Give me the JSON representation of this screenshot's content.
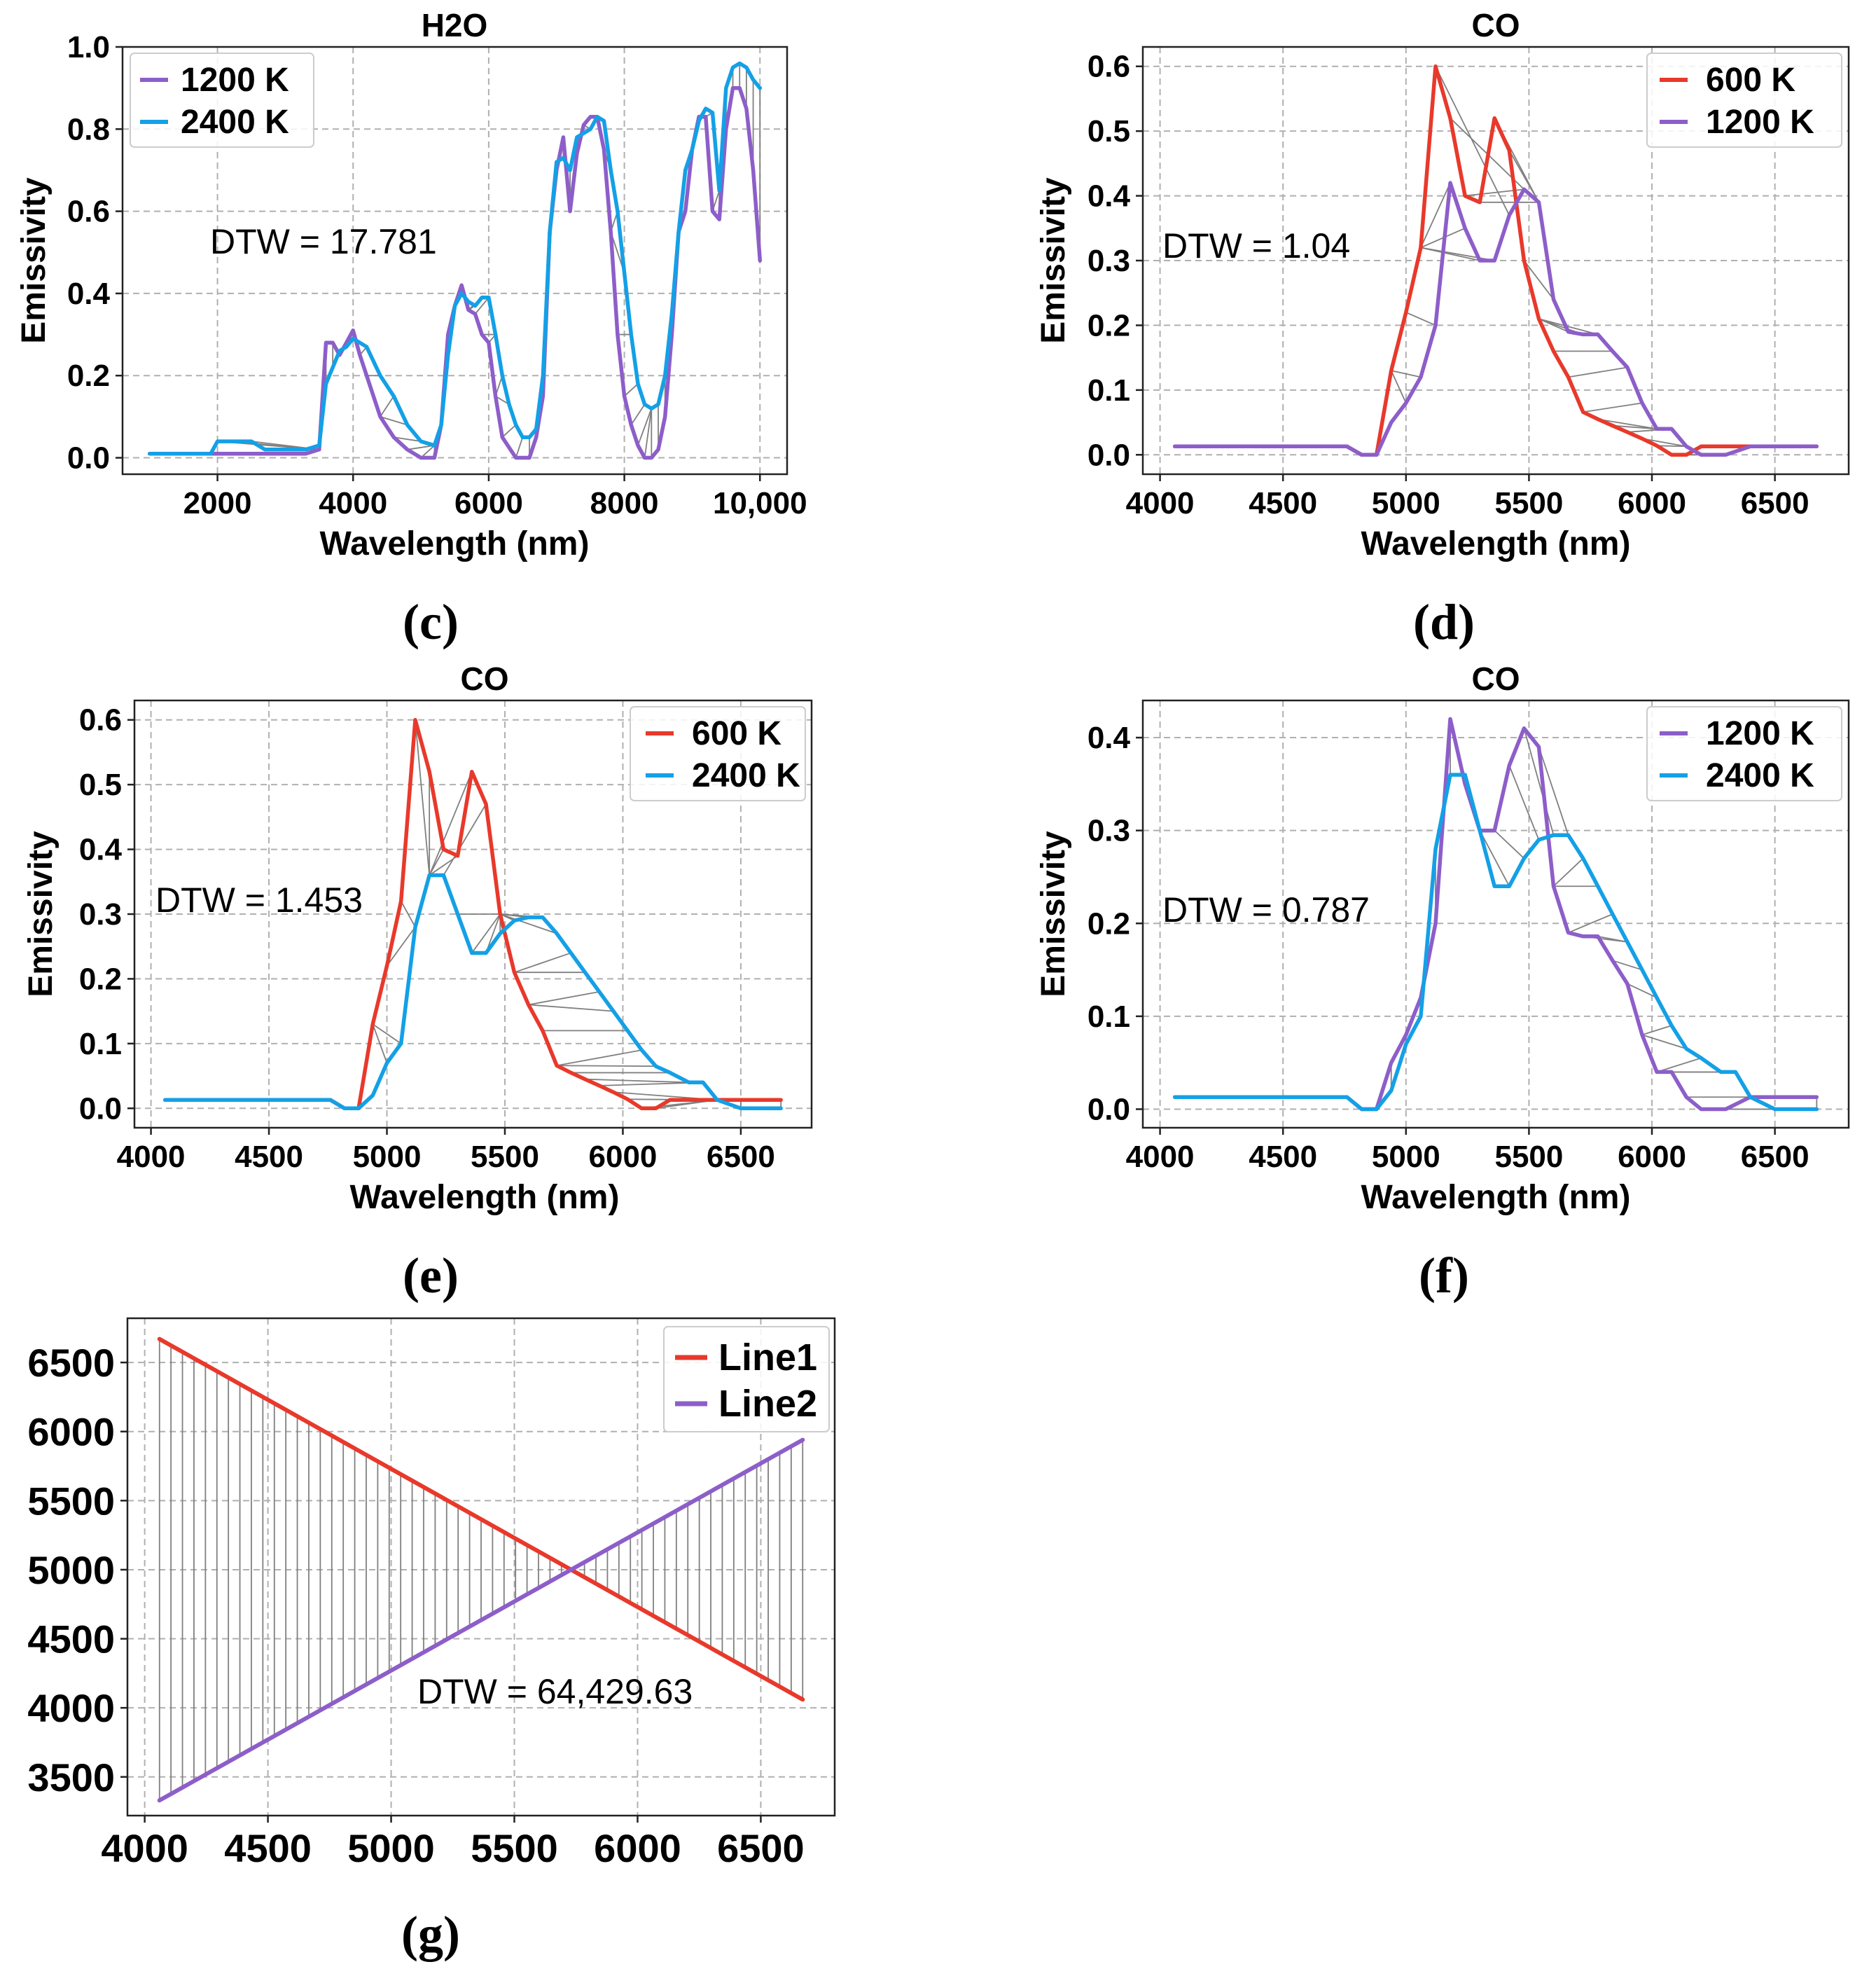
{
  "colors": {
    "red": "#e8392b",
    "purple": "#8d5ec9",
    "blue": "#14a0e6",
    "connector": "#808080"
  },
  "chart_data": [
    {
      "id": "c",
      "type": "line",
      "caption": "(c)",
      "title": "H2O",
      "xlabel": "Wavelength (nm)",
      "ylabel": "Emissivity",
      "xlim": [
        600,
        10400
      ],
      "ylim": [
        -0.04,
        1.0
      ],
      "xticks": [
        2000,
        4000,
        6000,
        8000,
        10000
      ],
      "xtick_labels": [
        "2000",
        "4000",
        "6000",
        "8000",
        "10,000"
      ],
      "yticks": [
        0.0,
        0.2,
        0.4,
        0.6,
        0.8,
        1.0
      ],
      "ytick_labels": [
        "0.0",
        "0.2",
        "0.4",
        "0.6",
        "0.8",
        "1.0"
      ],
      "dtw_label": "DTW = 17.781",
      "legend_loc": "upper left",
      "series": [
        {
          "name": "1200 K",
          "color": "purple",
          "x": [
            1000,
            2000,
            2500,
            2900,
            3300,
            3500,
            3600,
            3700,
            3800,
            3900,
            4000,
            4100,
            4200,
            4400,
            4600,
            4800,
            5000,
            5200,
            5300,
            5400,
            5500,
            5600,
            5700,
            5800,
            5900,
            6000,
            6100,
            6200,
            6400,
            6600,
            6700,
            6800,
            6900,
            7000,
            7100,
            7200,
            7300,
            7400,
            7500,
            7600,
            7700,
            7800,
            7900,
            8000,
            8100,
            8200,
            8300,
            8400,
            8500,
            8600,
            8700,
            8800,
            8900,
            9000,
            9100,
            9200,
            9300,
            9400,
            9500,
            9600,
            9700,
            9800,
            9900,
            10000
          ],
          "y": [
            0.01,
            0.01,
            0.01,
            0.01,
            0.01,
            0.02,
            0.28,
            0.28,
            0.25,
            0.28,
            0.31,
            0.25,
            0.2,
            0.1,
            0.05,
            0.02,
            0.0,
            0.0,
            0.08,
            0.3,
            0.37,
            0.42,
            0.36,
            0.35,
            0.3,
            0.28,
            0.15,
            0.05,
            0.0,
            0.0,
            0.05,
            0.15,
            0.55,
            0.7,
            0.78,
            0.6,
            0.74,
            0.81,
            0.83,
            0.83,
            0.75,
            0.55,
            0.3,
            0.15,
            0.08,
            0.03,
            0.0,
            0.0,
            0.02,
            0.1,
            0.3,
            0.55,
            0.6,
            0.75,
            0.83,
            0.83,
            0.6,
            0.58,
            0.8,
            0.9,
            0.9,
            0.85,
            0.7,
            0.48
          ]
        },
        {
          "name": "2400 K",
          "color": "blue",
          "x": [
            1000,
            1900,
            2000,
            2200,
            2500,
            2700,
            3000,
            3300,
            3500,
            3600,
            3700,
            3800,
            3900,
            4000,
            4200,
            4400,
            4600,
            4800,
            5000,
            5200,
            5300,
            5400,
            5500,
            5600,
            5700,
            5800,
            5900,
            6000,
            6100,
            6200,
            6300,
            6400,
            6500,
            6600,
            6700,
            6800,
            6900,
            7000,
            7100,
            7200,
            7300,
            7500,
            7600,
            7700,
            7800,
            7900,
            8000,
            8100,
            8200,
            8300,
            8400,
            8500,
            8600,
            8700,
            8800,
            8900,
            9000,
            9100,
            9200,
            9300,
            9400,
            9500,
            9600,
            9700,
            9800,
            9900,
            10000
          ],
          "y": [
            0.01,
            0.01,
            0.04,
            0.04,
            0.04,
            0.02,
            0.02,
            0.02,
            0.03,
            0.18,
            0.22,
            0.26,
            0.27,
            0.29,
            0.27,
            0.2,
            0.15,
            0.08,
            0.04,
            0.03,
            0.08,
            0.25,
            0.37,
            0.4,
            0.38,
            0.37,
            0.39,
            0.39,
            0.3,
            0.2,
            0.13,
            0.08,
            0.05,
            0.05,
            0.07,
            0.2,
            0.55,
            0.72,
            0.73,
            0.7,
            0.78,
            0.8,
            0.83,
            0.82,
            0.7,
            0.6,
            0.45,
            0.3,
            0.18,
            0.13,
            0.12,
            0.13,
            0.2,
            0.35,
            0.55,
            0.7,
            0.75,
            0.82,
            0.85,
            0.84,
            0.65,
            0.9,
            0.95,
            0.96,
            0.95,
            0.92,
            0.9
          ]
        }
      ]
    },
    {
      "id": "d",
      "type": "line",
      "caption": "(d)",
      "title": "CO",
      "xlabel": "Wavelength (nm)",
      "ylabel": "Emissivity",
      "xlim": [
        3930,
        6800
      ],
      "ylim": [
        -0.03,
        0.63
      ],
      "xticks": [
        4000,
        4500,
        5000,
        5500,
        6000,
        6500
      ],
      "xtick_labels": [
        "4000",
        "4500",
        "5000",
        "5500",
        "6000",
        "6500"
      ],
      "yticks": [
        0.0,
        0.1,
        0.2,
        0.3,
        0.4,
        0.5,
        0.6
      ],
      "ytick_labels": [
        "0.0",
        "0.1",
        "0.2",
        "0.3",
        "0.4",
        "0.5",
        "0.6"
      ],
      "dtw_label": "DTW = 1.04",
      "legend_loc": "upper right",
      "series": [
        {
          "name": "600 K",
          "color": "red",
          "x": [
            4060,
            4300,
            4500,
            4700,
            4760,
            4820,
            4880,
            4940,
            5000,
            5060,
            5120,
            5180,
            5240,
            5300,
            5360,
            5420,
            5480,
            5540,
            5600,
            5660,
            5720,
            5780,
            5840,
            5900,
            5960,
            6020,
            6080,
            6140,
            6200,
            6300,
            6400,
            6500,
            6670
          ],
          "y": [
            0.013,
            0.013,
            0.013,
            0.013,
            0.013,
            0.0,
            0.0,
            0.13,
            0.22,
            0.32,
            0.6,
            0.52,
            0.4,
            0.39,
            0.52,
            0.47,
            0.3,
            0.21,
            0.16,
            0.12,
            0.066,
            0.055,
            0.045,
            0.035,
            0.025,
            0.014,
            0.0,
            0.0,
            0.013,
            0.013,
            0.013,
            0.013,
            0.013
          ]
        },
        {
          "name": "1200 K",
          "color": "purple",
          "x": [
            4060,
            4300,
            4500,
            4700,
            4760,
            4820,
            4880,
            4940,
            5000,
            5060,
            5120,
            5180,
            5240,
            5300,
            5360,
            5420,
            5480,
            5540,
            5600,
            5660,
            5720,
            5780,
            5840,
            5900,
            5960,
            6020,
            6080,
            6140,
            6200,
            6300,
            6400,
            6670
          ],
          "y": [
            0.013,
            0.013,
            0.013,
            0.013,
            0.013,
            0.0,
            0.0,
            0.05,
            0.08,
            0.12,
            0.2,
            0.42,
            0.35,
            0.3,
            0.3,
            0.37,
            0.41,
            0.39,
            0.24,
            0.19,
            0.186,
            0.186,
            0.16,
            0.135,
            0.08,
            0.04,
            0.04,
            0.013,
            0.0,
            0.0,
            0.013,
            0.013
          ]
        }
      ]
    },
    {
      "id": "e",
      "type": "line",
      "caption": "(e)",
      "title": "CO",
      "xlabel": "Wavelength (nm)",
      "ylabel": "Emissivity",
      "xlim": [
        3930,
        6800
      ],
      "ylim": [
        -0.03,
        0.63
      ],
      "xticks": [
        4000,
        4500,
        5000,
        5500,
        6000,
        6500
      ],
      "xtick_labels": [
        "4000",
        "4500",
        "5000",
        "5500",
        "6000",
        "6500"
      ],
      "yticks": [
        0.0,
        0.1,
        0.2,
        0.3,
        0.4,
        0.5,
        0.6
      ],
      "ytick_labels": [
        "0.0",
        "0.1",
        "0.2",
        "0.3",
        "0.4",
        "0.5",
        "0.6"
      ],
      "dtw_label": "DTW = 1.453",
      "legend_loc": "upper right",
      "series": [
        {
          "name": "600 K",
          "color": "red",
          "x": [
            4060,
            4300,
            4500,
            4700,
            4760,
            4820,
            4880,
            4940,
            5000,
            5060,
            5120,
            5180,
            5240,
            5300,
            5360,
            5420,
            5480,
            5540,
            5600,
            5660,
            5720,
            5780,
            5840,
            5900,
            5960,
            6020,
            6080,
            6140,
            6200,
            6300,
            6400,
            6500,
            6670
          ],
          "y": [
            0.013,
            0.013,
            0.013,
            0.013,
            0.013,
            0.0,
            0.0,
            0.13,
            0.22,
            0.32,
            0.6,
            0.52,
            0.4,
            0.39,
            0.52,
            0.47,
            0.3,
            0.21,
            0.16,
            0.12,
            0.066,
            0.055,
            0.045,
            0.035,
            0.025,
            0.014,
            0.0,
            0.0,
            0.013,
            0.013,
            0.013,
            0.013,
            0.013
          ]
        },
        {
          "name": "2400 K",
          "color": "blue",
          "x": [
            4060,
            4300,
            4500,
            4700,
            4760,
            4820,
            4880,
            4940,
            5000,
            5060,
            5120,
            5180,
            5240,
            5300,
            5360,
            5420,
            5480,
            5540,
            5600,
            5660,
            5720,
            5780,
            5840,
            5900,
            5960,
            6020,
            6080,
            6140,
            6200,
            6280,
            6340,
            6400,
            6500,
            6670
          ],
          "y": [
            0.013,
            0.013,
            0.013,
            0.013,
            0.013,
            0.0,
            0.0,
            0.02,
            0.07,
            0.1,
            0.28,
            0.36,
            0.36,
            0.3,
            0.24,
            0.24,
            0.27,
            0.29,
            0.295,
            0.295,
            0.27,
            0.24,
            0.21,
            0.18,
            0.15,
            0.12,
            0.09,
            0.065,
            0.055,
            0.04,
            0.04,
            0.013,
            0.0,
            0.0
          ]
        }
      ]
    },
    {
      "id": "f",
      "type": "line",
      "caption": "(f)",
      "title": "CO",
      "xlabel": "Wavelength (nm)",
      "ylabel": "Emissivity",
      "xlim": [
        3930,
        6800
      ],
      "ylim": [
        -0.02,
        0.44
      ],
      "xticks": [
        4000,
        4500,
        5000,
        5500,
        6000,
        6500
      ],
      "xtick_labels": [
        "4000",
        "4500",
        "5000",
        "5500",
        "6000",
        "6500"
      ],
      "yticks": [
        0.0,
        0.1,
        0.2,
        0.3,
        0.4
      ],
      "ytick_labels": [
        "0.0",
        "0.1",
        "0.2",
        "0.3",
        "0.4"
      ],
      "dtw_label": "DTW = 0.787",
      "legend_loc": "upper right",
      "series": [
        {
          "name": "1200 K",
          "color": "purple",
          "x": [
            4060,
            4300,
            4500,
            4700,
            4760,
            4820,
            4880,
            4940,
            5000,
            5060,
            5120,
            5180,
            5240,
            5300,
            5360,
            5420,
            5480,
            5540,
            5600,
            5660,
            5720,
            5780,
            5840,
            5900,
            5960,
            6020,
            6080,
            6140,
            6200,
            6300,
            6400,
            6670
          ],
          "y": [
            0.013,
            0.013,
            0.013,
            0.013,
            0.013,
            0.0,
            0.0,
            0.05,
            0.08,
            0.12,
            0.2,
            0.42,
            0.35,
            0.3,
            0.3,
            0.37,
            0.41,
            0.39,
            0.24,
            0.19,
            0.186,
            0.186,
            0.16,
            0.135,
            0.08,
            0.04,
            0.04,
            0.013,
            0.0,
            0.0,
            0.013,
            0.013
          ]
        },
        {
          "name": "2400 K",
          "color": "blue",
          "x": [
            4060,
            4300,
            4500,
            4700,
            4760,
            4820,
            4880,
            4940,
            5000,
            5060,
            5120,
            5180,
            5240,
            5300,
            5360,
            5420,
            5480,
            5540,
            5600,
            5660,
            5720,
            5780,
            5840,
            5900,
            5960,
            6020,
            6080,
            6140,
            6200,
            6280,
            6340,
            6400,
            6500,
            6670
          ],
          "y": [
            0.013,
            0.013,
            0.013,
            0.013,
            0.013,
            0.0,
            0.0,
            0.02,
            0.07,
            0.1,
            0.28,
            0.36,
            0.36,
            0.3,
            0.24,
            0.24,
            0.27,
            0.29,
            0.295,
            0.295,
            0.27,
            0.24,
            0.21,
            0.18,
            0.15,
            0.12,
            0.09,
            0.065,
            0.055,
            0.04,
            0.04,
            0.013,
            0.0,
            0.0
          ]
        }
      ]
    },
    {
      "id": "g",
      "type": "line",
      "caption": "(g)",
      "title": "",
      "xlabel": "",
      "ylabel": "",
      "xlim": [
        3930,
        6800
      ],
      "ylim": [
        3220,
        6820
      ],
      "xticks": [
        4000,
        4500,
        5000,
        5500,
        6000,
        6500
      ],
      "xtick_labels": [
        "4000",
        "4500",
        "5000",
        "5500",
        "6000",
        "6500"
      ],
      "yticks": [
        3500,
        4000,
        4500,
        5000,
        5500,
        6000,
        6500
      ],
      "ytick_labels": [
        "3500",
        "4000",
        "4500",
        "5000",
        "5500",
        "6000",
        "6500"
      ],
      "dtw_label": "DTW = 64,429.63",
      "legend_loc": "upper right",
      "series": [
        {
          "name": "Line1",
          "color": "red",
          "x": [
            4060,
            6670
          ],
          "y": [
            6670,
            4060
          ]
        },
        {
          "name": "Line2",
          "color": "purple",
          "x": [
            4060,
            6670
          ],
          "y": [
            3330,
            5940
          ]
        }
      ]
    }
  ]
}
